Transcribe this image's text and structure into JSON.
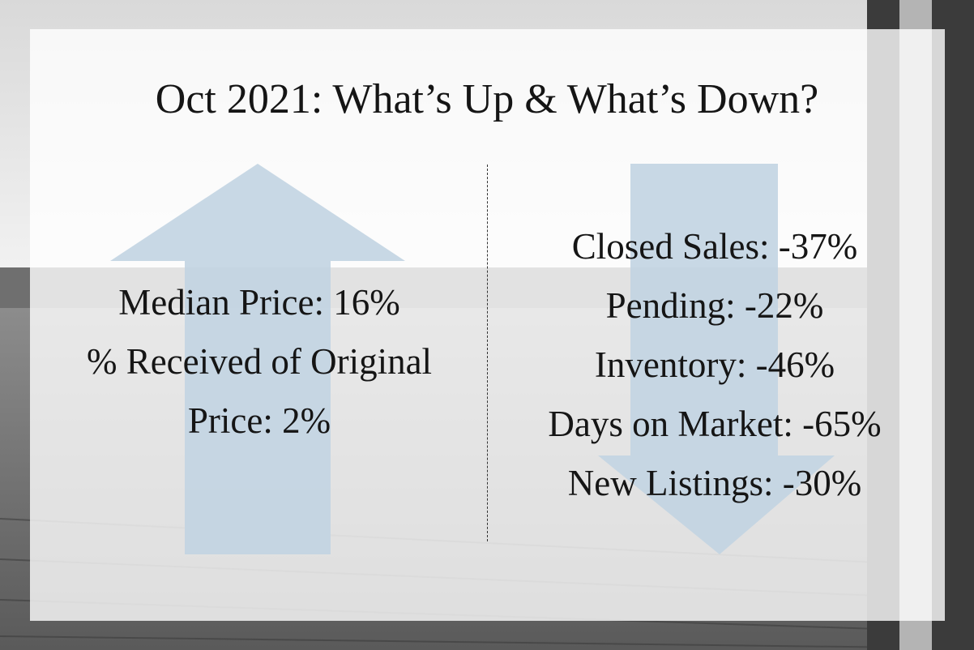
{
  "title": "Oct 2021: What’s Up & What’s Down?",
  "up": {
    "icon": "arrow-up-icon",
    "color": "#c2d4e2",
    "lines": [
      "Median Price: 16%",
      "% Received of Original",
      "Price: 2%"
    ]
  },
  "down": {
    "icon": "arrow-down-icon",
    "color": "#c2d4e2",
    "lines": [
      "Closed Sales: -37%",
      "Pending: -22%",
      "Inventory: -46%",
      "Days on Market: -65%",
      "New Listings: -30%"
    ]
  },
  "background": {
    "description_colors": [
      "#ffffff",
      "#6b6b6b",
      "#2b2b2b"
    ]
  }
}
